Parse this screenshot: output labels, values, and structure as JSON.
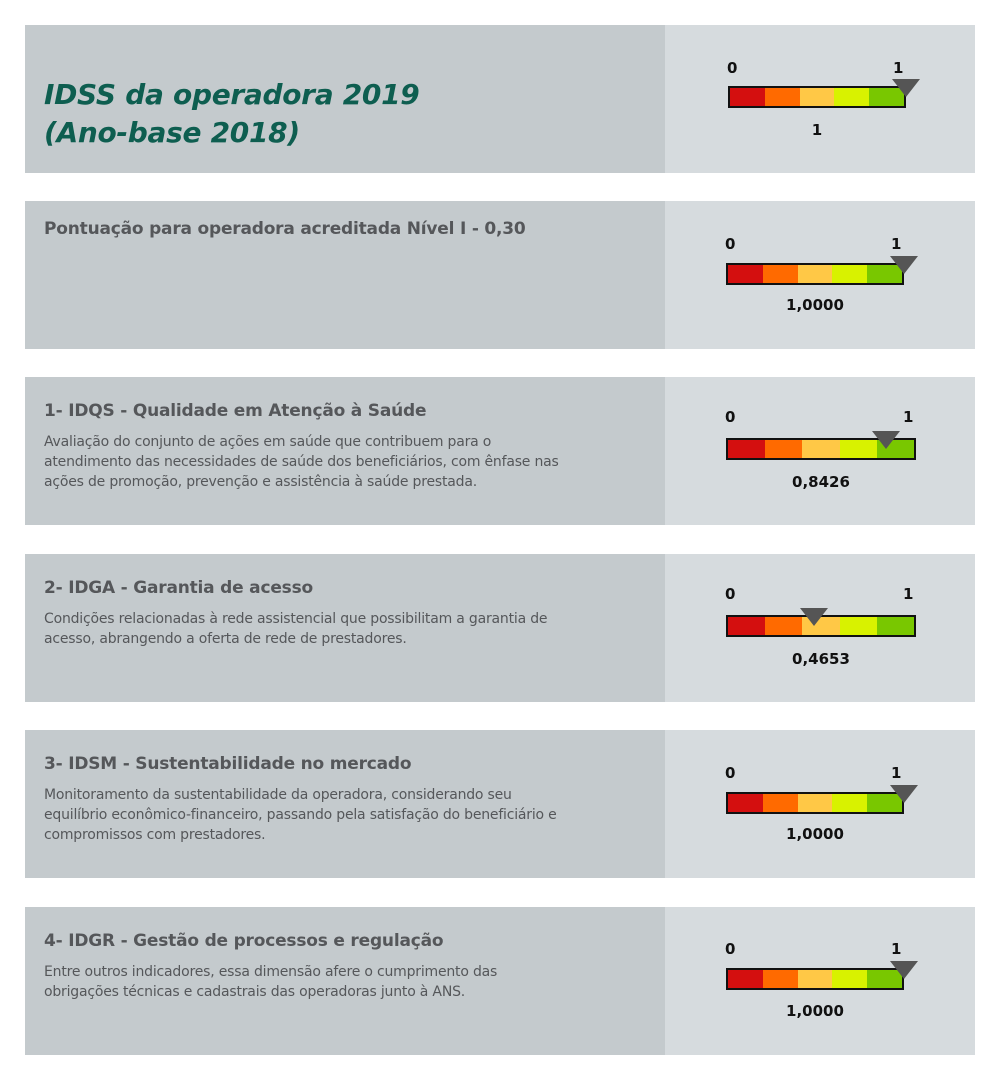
{
  "header": {
    "title_line1": "IDSS da operadora 2019",
    "title_line2": "(Ano-base 2018)"
  },
  "colors": {
    "scale": [
      "#d40f0f",
      "#ff6a00",
      "#ffc846",
      "#d8f200",
      "#79c700"
    ],
    "pointer": "#555555",
    "title_green": "#0e5e50"
  },
  "panels": [
    {
      "id": "idss",
      "title": "",
      "description": "",
      "value": 1,
      "display_value": "1",
      "scale_min_label": "0",
      "scale_max_label": "1"
    },
    {
      "id": "acreditacao",
      "title": "Pontuação para operadora acreditada Nível I - 0,30",
      "description": "",
      "value": 1.0,
      "display_value": "1,0000",
      "scale_min_label": "0",
      "scale_max_label": "1"
    },
    {
      "id": "idqs",
      "title": "1- IDQS - Qualidade em Atenção à Saúde",
      "description": "Avaliação do conjunto de ações em saúde que contribuem para o atendimento das necessidades de saúde dos beneficiários, com ênfase nas ações de promoção, prevenção e assistência à saúde prestada.",
      "value": 0.8426,
      "display_value": "0,8426",
      "scale_min_label": "0",
      "scale_max_label": "1"
    },
    {
      "id": "idga",
      "title": "2- IDGA - Garantia de acesso",
      "description": "Condições relacionadas à rede assistencial que possibilitam a garantia de acesso, abrangendo a oferta de rede de prestadores.",
      "value": 0.4653,
      "display_value": "0,4653",
      "scale_min_label": "0",
      "scale_max_label": "1"
    },
    {
      "id": "idsm",
      "title": "3- IDSM - Sustentabilidade no mercado",
      "description": "Monitoramento da sustentabilidade da operadora, considerando seu equilíbrio econômico-financeiro, passando pela satisfação do beneficiário e compromissos com prestadores.",
      "value": 1.0,
      "display_value": "1,0000",
      "scale_min_label": "0",
      "scale_max_label": "1"
    },
    {
      "id": "idgr",
      "title": "4- IDGR - Gestão de processos e regulação",
      "description": "Entre outros indicadores, essa dimensão afere o cumprimento das obrigações técnicas e cadastrais das operadoras junto à ANS.",
      "value": 1.0,
      "display_value": "1,0000",
      "scale_min_label": "0",
      "scale_max_label": "1"
    }
  ],
  "chart_data": {
    "type": "bar",
    "categories": [
      "IDSS da operadora 2019",
      "Pontuação para operadora acreditada Nível I - 0,30",
      "1- IDQS",
      "2- IDGA",
      "3- IDSM",
      "4- IDGR"
    ],
    "values": [
      1,
      1.0,
      0.8426,
      0.4653,
      1.0,
      1.0
    ],
    "ylim": [
      0,
      1
    ]
  }
}
